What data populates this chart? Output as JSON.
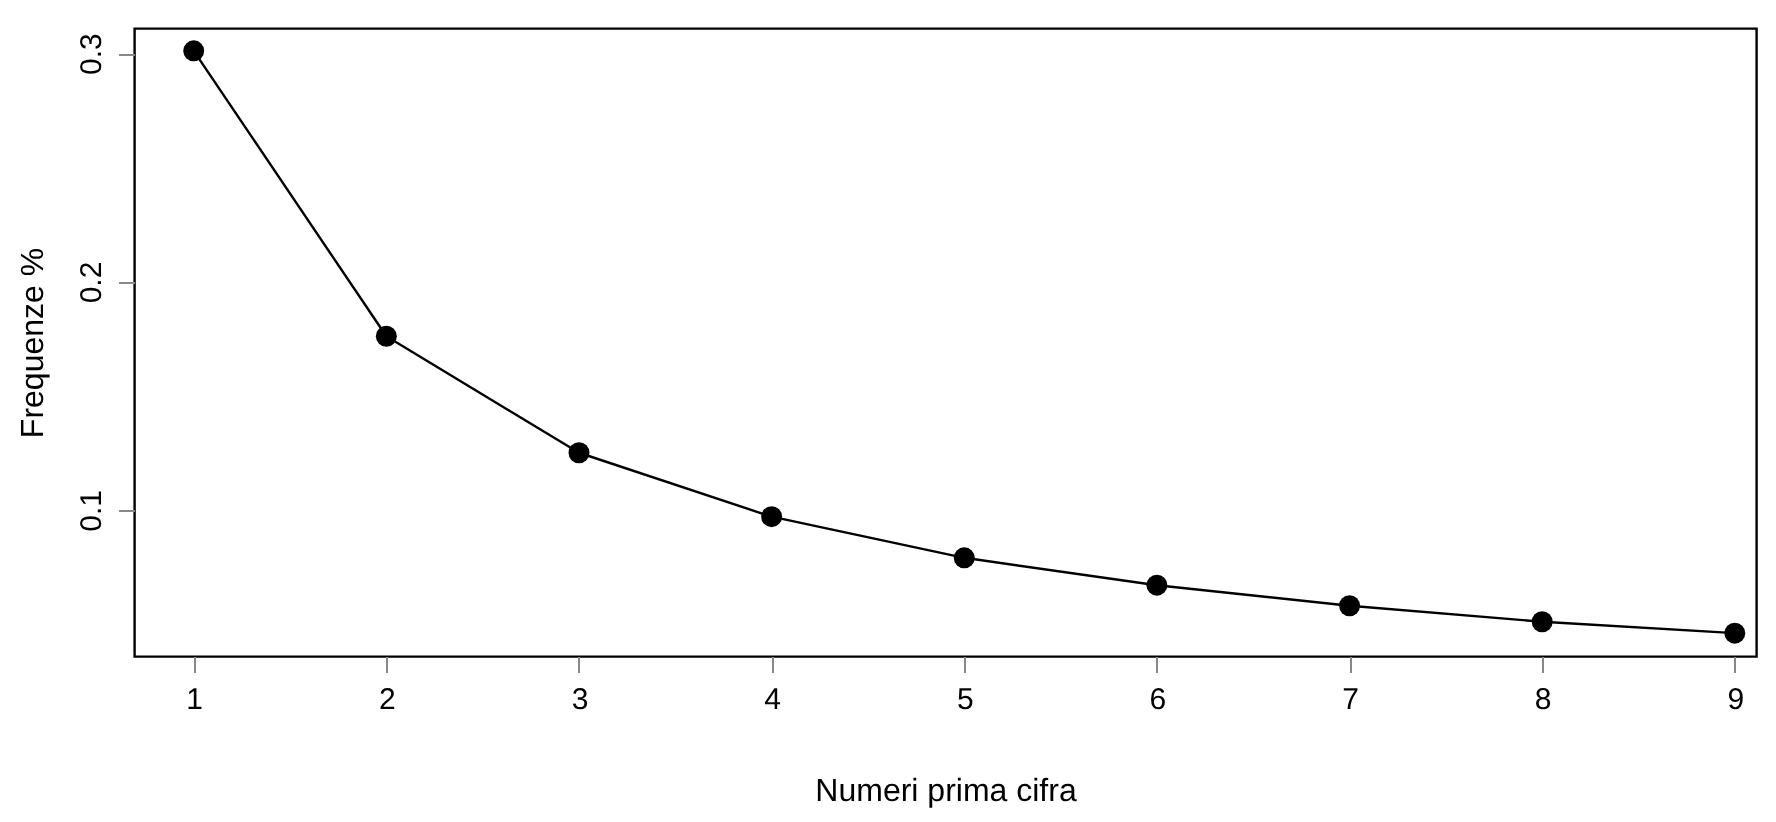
{
  "chart_data": {
    "type": "line",
    "xlabel": "Numeri prima cifra",
    "ylabel": "Frequenze %",
    "x": [
      1,
      2,
      3,
      4,
      5,
      6,
      7,
      8,
      9
    ],
    "values": [
      0.301,
      0.176,
      0.125,
      0.097,
      0.079,
      0.067,
      0.058,
      0.051,
      0.046
    ],
    "color": "#000000",
    "marker": "circle",
    "line_style": "solid",
    "grid": false,
    "xlim": [
      0.69,
      9.11
    ],
    "ylim": [
      0.036,
      0.311
    ],
    "xticks": [
      1,
      2,
      3,
      4,
      5,
      6,
      7,
      8,
      9
    ],
    "yticks": [
      0.1,
      0.2,
      0.3
    ]
  }
}
